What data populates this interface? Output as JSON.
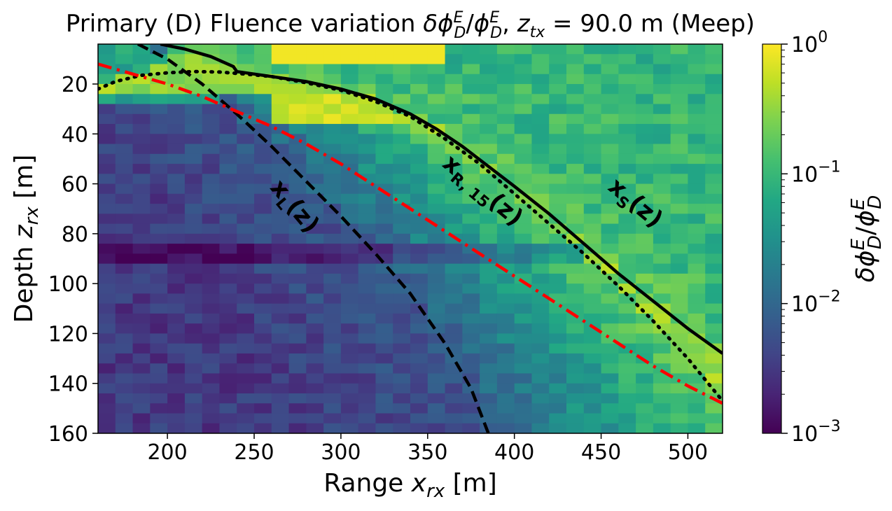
{
  "chart_data": {
    "type": "heatmap",
    "title": "Primary (D) Fluence variation δφ_D^E/φ_D^E, z_tx = 90.0 m (Meep)",
    "xlabel": "Range x_rx [m]",
    "ylabel": "Depth z_rx [m]",
    "colorbar_label": "δφ_D^E/φ_D^E",
    "colormap": "viridis",
    "color_scale": "log",
    "xlim": [
      160,
      520
    ],
    "ylim": [
      160,
      4
    ],
    "x_ticks": [
      200,
      250,
      300,
      350,
      400,
      450,
      500
    ],
    "y_ticks": [
      20,
      40,
      60,
      80,
      100,
      120,
      140,
      160
    ],
    "colorbar_range": [
      0.001,
      1
    ],
    "colorbar_ticks": [
      {
        "value": 1,
        "base": "10",
        "exp": "0"
      },
      {
        "value": 0.1,
        "base": "10",
        "exp": "−1"
      },
      {
        "value": 0.01,
        "base": "10",
        "exp": "−2"
      },
      {
        "value": 0.001,
        "base": "10",
        "exp": "−3"
      }
    ],
    "grid": {
      "x_cells": 36,
      "z_cells": 39,
      "description": "log10 fluence variation; high (~0.3-1) between x_L and x_S curves near surface, ~0.1 beyond x_S, ~0.003-0.01 at depth"
    },
    "series": [
      {
        "name": "x_S(z)",
        "style": "solid",
        "color": "#000000",
        "points": [
          [
            196,
            4
          ],
          [
            210,
            6
          ],
          [
            225,
            9
          ],
          [
            238,
            13
          ],
          [
            240,
            15
          ],
          [
            260,
            17
          ],
          [
            280,
            19
          ],
          [
            300,
            22
          ],
          [
            320,
            26
          ],
          [
            340,
            32
          ],
          [
            355,
            38
          ],
          [
            370,
            45
          ],
          [
            385,
            53
          ],
          [
            400,
            61
          ],
          [
            420,
            72
          ],
          [
            440,
            84
          ],
          [
            460,
            96
          ],
          [
            480,
            107
          ],
          [
            500,
            118
          ],
          [
            520,
            128
          ]
        ]
      },
      {
        "name": "x_R,15(z)",
        "style": "dotted",
        "color": "#000000",
        "points": [
          [
            160,
            22
          ],
          [
            170,
            19
          ],
          [
            185,
            16.5
          ],
          [
            200,
            15.5
          ],
          [
            215,
            15
          ],
          [
            230,
            15.2
          ],
          [
            245,
            16
          ],
          [
            260,
            17
          ],
          [
            280,
            19.5
          ],
          [
            300,
            22.5
          ],
          [
            320,
            27
          ],
          [
            340,
            33
          ],
          [
            360,
            42
          ],
          [
            380,
            52
          ],
          [
            400,
            64
          ],
          [
            420,
            76
          ],
          [
            440,
            88
          ],
          [
            460,
            101
          ],
          [
            480,
            115
          ],
          [
            500,
            130
          ],
          [
            520,
            147
          ]
        ]
      },
      {
        "name": "x_L(z)",
        "style": "dashed",
        "color": "#000000",
        "points": [
          [
            183,
            4
          ],
          [
            200,
            10
          ],
          [
            220,
            20
          ],
          [
            240,
            32
          ],
          [
            260,
            45
          ],
          [
            280,
            59
          ],
          [
            300,
            73
          ],
          [
            320,
            88
          ],
          [
            340,
            104
          ],
          [
            360,
            124
          ],
          [
            375,
            142
          ],
          [
            385,
            160
          ]
        ]
      },
      {
        "name": "red-dashdot",
        "style": "dashdot",
        "color": "#ff0000",
        "points": [
          [
            160,
            12
          ],
          [
            180,
            16
          ],
          [
            200,
            20
          ],
          [
            220,
            25
          ],
          [
            240,
            31
          ],
          [
            260,
            37
          ],
          [
            280,
            44
          ],
          [
            300,
            52
          ],
          [
            320,
            61
          ],
          [
            340,
            70
          ],
          [
            360,
            79
          ],
          [
            380,
            88
          ],
          [
            400,
            97
          ],
          [
            420,
            106
          ],
          [
            440,
            115
          ],
          [
            460,
            124
          ],
          [
            480,
            133
          ],
          [
            500,
            141
          ],
          [
            520,
            148
          ]
        ]
      }
    ],
    "annotations": [
      {
        "text": "x",
        "sub": "L",
        "suffix": "(z)",
        "x": 270,
        "z": 71,
        "rotation_deg": 50
      },
      {
        "text": "x",
        "sub": "R, 15",
        "suffix": "(z)",
        "x": 379,
        "z": 65,
        "rotation_deg": 40
      },
      {
        "text": "x",
        "sub": "S",
        "suffix": "(z)",
        "x": 467,
        "z": 70,
        "rotation_deg": 40
      }
    ]
  }
}
